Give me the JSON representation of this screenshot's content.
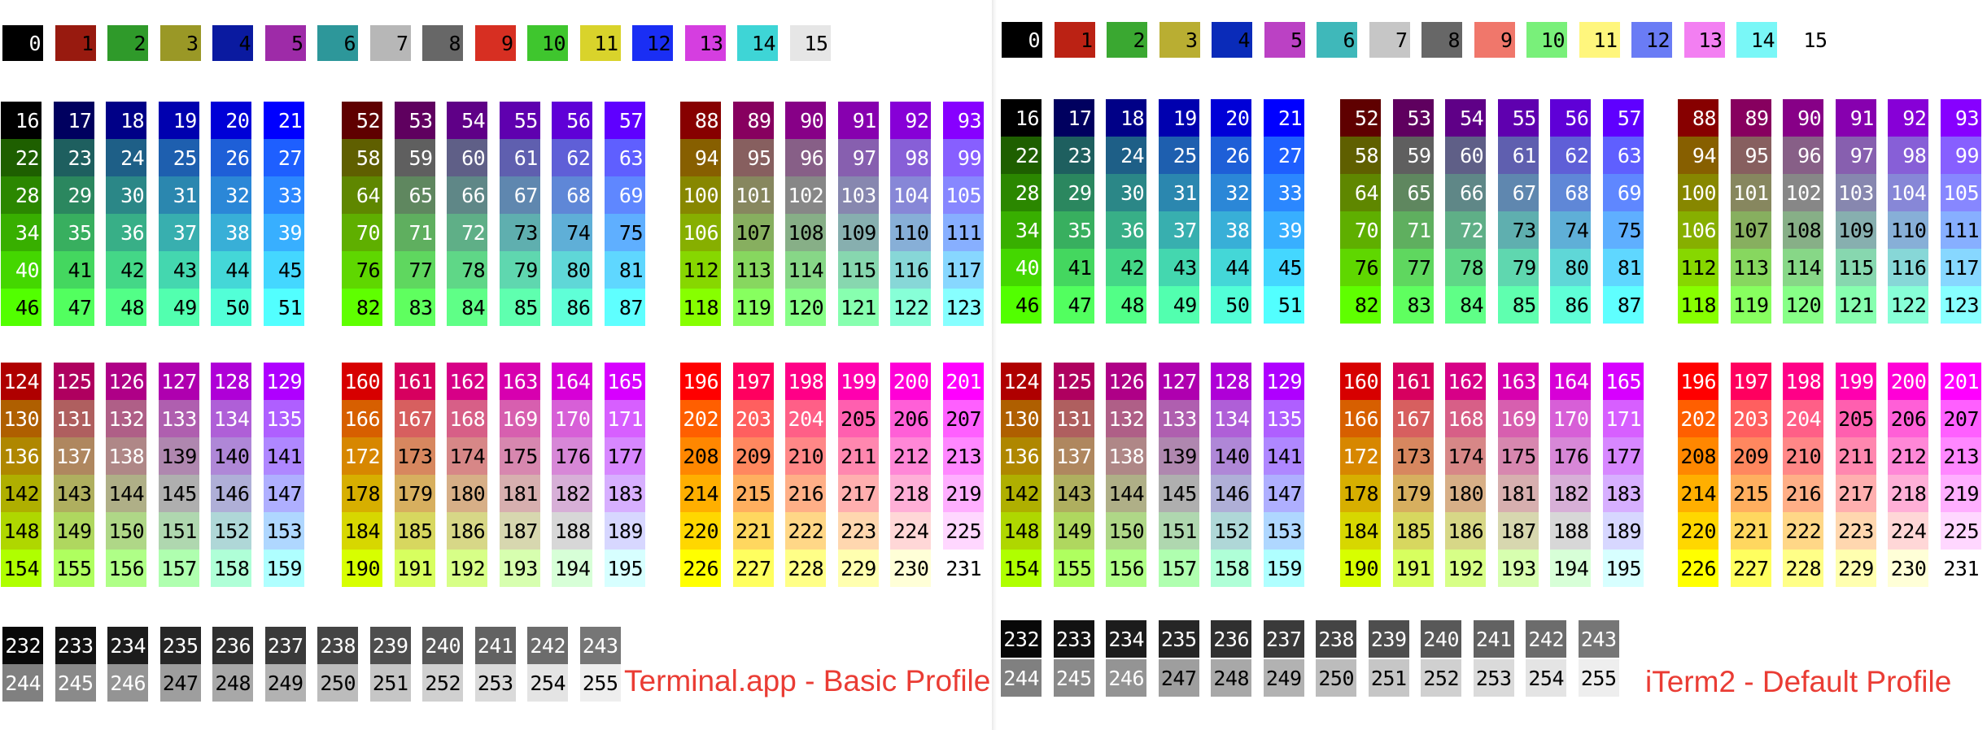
{
  "panels": [
    {
      "id": "terminal-app",
      "label": "Terminal.app - Basic Profile",
      "ansi": [
        "#000000",
        "#981a0f",
        "#2f9a2a",
        "#9a9826",
        "#0a1aa0",
        "#9e2ba8",
        "#2d979a",
        "#b7b7b7",
        "#676767",
        "#d72f22",
        "#3fc62e",
        "#d9d32b",
        "#1a2ef4",
        "#d53ee0",
        "#3ed5d6",
        "#e6e6e6"
      ],
      "ansi_text": [
        "#ffffff",
        "#000000",
        "#000000",
        "#000000",
        "#000000",
        "#000000",
        "#000000",
        "#000000",
        "#000000",
        "#000000",
        "#000000",
        "#000000",
        "#000000",
        "#000000",
        "#000000",
        "#000000"
      ],
      "cube": [
        "#000000",
        "#00005f",
        "#000087",
        "#0000af",
        "#0000d7",
        "#0000ff",
        "#1e5f00",
        "#1e5f5f",
        "#1e5f87",
        "#1e5faf",
        "#1e5fd7",
        "#1e5fff",
        "#2b8700",
        "#2b875f",
        "#2b8787",
        "#2b87af",
        "#2b87d7",
        "#2b87ff",
        "#38af00",
        "#38af5f",
        "#38af87",
        "#38afaf",
        "#38afd7",
        "#38afff",
        "#44d700",
        "#44d75f",
        "#44d787",
        "#44d7af",
        "#44d7d7",
        "#44d7ff",
        "#52ff00",
        "#52ff5f",
        "#52ff87",
        "#52ffaf",
        "#52ffd7",
        "#52ffff",
        "#5f0000",
        "#5f005f",
        "#5f0087",
        "#5f00af",
        "#5f00d7",
        "#5f00ff",
        "#5f5f00",
        "#5f5f5f",
        "#5f5f87",
        "#5f5faf",
        "#5f5fd7",
        "#5f5fff",
        "#5f8700",
        "#5f875f",
        "#5f8787",
        "#5f87af",
        "#5f87d7",
        "#5f87ff",
        "#5faf00",
        "#5faf5f",
        "#5faf87",
        "#5fafaf",
        "#5fafd7",
        "#5fafff",
        "#5fd700",
        "#5fd75f",
        "#5fd787",
        "#5fd7af",
        "#5fd7d7",
        "#5fd7ff",
        "#5fff00",
        "#5fff5f",
        "#5fff87",
        "#5fffaf",
        "#5fffd7",
        "#5fffff",
        "#870000",
        "#87005f",
        "#870087",
        "#8700af",
        "#8700d7",
        "#8700ff",
        "#875f00",
        "#875f5f",
        "#875f87",
        "#875faf",
        "#875fd7",
        "#875fff",
        "#878700",
        "#87875f",
        "#878787",
        "#8787af",
        "#8787d7",
        "#8787ff",
        "#87af00",
        "#87af5f",
        "#87af87",
        "#87afaf",
        "#87afd7",
        "#87afff",
        "#87d700",
        "#87d75f",
        "#87d787",
        "#87d7af",
        "#87d7d7",
        "#87d7ff",
        "#87ff00",
        "#87ff5f",
        "#87ff87",
        "#87ffaf",
        "#87ffd7",
        "#87ffff",
        "#af0000",
        "#af005f",
        "#af0087",
        "#af00af",
        "#af00d7",
        "#af00ff",
        "#af5f00",
        "#af5f5f",
        "#af5f87",
        "#af5faf",
        "#af5fd7",
        "#af5fff",
        "#af8700",
        "#af875f",
        "#af8787",
        "#af87af",
        "#af87d7",
        "#af87ff",
        "#afaf00",
        "#afaf5f",
        "#afaf87",
        "#afafaf",
        "#afafd7",
        "#afafff",
        "#afd700",
        "#afd75f",
        "#afd787",
        "#afd7af",
        "#afd7d7",
        "#afd7ff",
        "#afff00",
        "#afff5f",
        "#afff87",
        "#afffaf",
        "#afffd7",
        "#afffff",
        "#d70000",
        "#d7005f",
        "#d70087",
        "#d700af",
        "#d700d7",
        "#d700ff",
        "#d75f00",
        "#d75f5f",
        "#d75f87",
        "#d75faf",
        "#d75fd7",
        "#d75fff",
        "#d78700",
        "#d7875f",
        "#d78787",
        "#d787af",
        "#d787d7",
        "#d787ff",
        "#d7af00",
        "#d7af5f",
        "#d7af87",
        "#d7afaf",
        "#d7afd7",
        "#d7afff",
        "#d7d700",
        "#d7d75f",
        "#d7d787",
        "#d7d7af",
        "#d7d7d7",
        "#d7d7ff",
        "#d7ff00",
        "#d7ff5f",
        "#d7ff87",
        "#d7ffaf",
        "#d7ffd7",
        "#d7ffff",
        "#ff0000",
        "#ff005f",
        "#ff0087",
        "#ff00af",
        "#ff00d7",
        "#ff00ff",
        "#ff5f00",
        "#ff5f5f",
        "#ff5f87",
        "#ff5faf",
        "#ff5fd7",
        "#ff5fff",
        "#ff8700",
        "#ff875f",
        "#ff8787",
        "#ff87af",
        "#ff87d7",
        "#ff87ff",
        "#ffaf00",
        "#ffaf5f",
        "#ffaf87",
        "#ffafaf",
        "#ffafd7",
        "#ffafff",
        "#ffd700",
        "#ffd75f",
        "#ffd787",
        "#ffd7af",
        "#ffd7d7",
        "#ffd7ff",
        "#ffff00",
        "#ffff5f",
        "#ffff87",
        "#ffffaf",
        "#ffffd7",
        "#ffffff"
      ],
      "gray": [
        "#080808",
        "#121212",
        "#1c1c1c",
        "#262626",
        "#303030",
        "#3a3a3a",
        "#444444",
        "#4e4e4e",
        "#585858",
        "#626262",
        "#6c6c6c",
        "#767676",
        "#808080",
        "#8a8a8a",
        "#949494",
        "#9e9e9e",
        "#a8a8a8",
        "#b2b2b2",
        "#bcbcbc",
        "#c6c6c6",
        "#d0d0d0",
        "#dadada",
        "#e4e4e4",
        "#eeeeee"
      ]
    },
    {
      "id": "iterm2",
      "label": "iTerm2 - Default Profile",
      "ansi": [
        "#000000",
        "#bb2214",
        "#3aa831",
        "#b9ae32",
        "#0a2bb9",
        "#bb41c4",
        "#3fb8ba",
        "#c6c6c6",
        "#676767",
        "#f0776b",
        "#79f07a",
        "#fff67d",
        "#6a7cf5",
        "#f37ff2",
        "#79f7f7",
        "#ffffff"
      ],
      "ansi_text": [
        "#ffffff",
        "#000000",
        "#000000",
        "#000000",
        "#000000",
        "#000000",
        "#000000",
        "#000000",
        "#000000",
        "#000000",
        "#000000",
        "#000000",
        "#000000",
        "#000000",
        "#000000",
        "#000000"
      ],
      "cube": [
        "#000000",
        "#00005f",
        "#000087",
        "#0000af",
        "#0000d7",
        "#0000ff",
        "#1e5f00",
        "#1e5f5f",
        "#1e5f87",
        "#1e5faf",
        "#1e5fd7",
        "#1e5fff",
        "#2b8700",
        "#2b875f",
        "#2b8787",
        "#2b87af",
        "#2b87d7",
        "#2b87ff",
        "#38af00",
        "#38af5f",
        "#38af87",
        "#38afaf",
        "#38afd7",
        "#38afff",
        "#44d700",
        "#44d75f",
        "#44d787",
        "#44d7af",
        "#44d7d7",
        "#44d7ff",
        "#52ff00",
        "#52ff5f",
        "#52ff87",
        "#52ffaf",
        "#52ffd7",
        "#52ffff",
        "#5f0000",
        "#5f005f",
        "#5f0087",
        "#5f00af",
        "#5f00d7",
        "#5f00ff",
        "#5f5f00",
        "#5f5f5f",
        "#5f5f87",
        "#5f5faf",
        "#5f5fd7",
        "#5f5fff",
        "#5f8700",
        "#5f875f",
        "#5f8787",
        "#5f87af",
        "#5f87d7",
        "#5f87ff",
        "#5faf00",
        "#5faf5f",
        "#5faf87",
        "#5fafaf",
        "#5fafd7",
        "#5fafff",
        "#5fd700",
        "#5fd75f",
        "#5fd787",
        "#5fd7af",
        "#5fd7d7",
        "#5fd7ff",
        "#5fff00",
        "#5fff5f",
        "#5fff87",
        "#5fffaf",
        "#5fffd7",
        "#5fffff",
        "#870000",
        "#87005f",
        "#870087",
        "#8700af",
        "#8700d7",
        "#8700ff",
        "#875f00",
        "#875f5f",
        "#875f87",
        "#875faf",
        "#875fd7",
        "#875fff",
        "#878700",
        "#87875f",
        "#878787",
        "#8787af",
        "#8787d7",
        "#8787ff",
        "#87af00",
        "#87af5f",
        "#87af87",
        "#87afaf",
        "#87afd7",
        "#87afff",
        "#87d700",
        "#87d75f",
        "#87d787",
        "#87d7af",
        "#87d7d7",
        "#87d7ff",
        "#87ff00",
        "#87ff5f",
        "#87ff87",
        "#87ffaf",
        "#87ffd7",
        "#87ffff",
        "#af0000",
        "#af005f",
        "#af0087",
        "#af00af",
        "#af00d7",
        "#af00ff",
        "#af5f00",
        "#af5f5f",
        "#af5f87",
        "#af5faf",
        "#af5fd7",
        "#af5fff",
        "#af8700",
        "#af875f",
        "#af8787",
        "#af87af",
        "#af87d7",
        "#af87ff",
        "#afaf00",
        "#afaf5f",
        "#afaf87",
        "#afafaf",
        "#afafd7",
        "#afafff",
        "#afd700",
        "#afd75f",
        "#afd787",
        "#afd7af",
        "#afd7d7",
        "#afd7ff",
        "#afff00",
        "#afff5f",
        "#afff87",
        "#afffaf",
        "#afffd7",
        "#afffff",
        "#d70000",
        "#d7005f",
        "#d70087",
        "#d700af",
        "#d700d7",
        "#d700ff",
        "#d75f00",
        "#d75f5f",
        "#d75f87",
        "#d75faf",
        "#d75fd7",
        "#d75fff",
        "#d78700",
        "#d7875f",
        "#d78787",
        "#d787af",
        "#d787d7",
        "#d787ff",
        "#d7af00",
        "#d7af5f",
        "#d7af87",
        "#d7afaf",
        "#d7afd7",
        "#d7afff",
        "#d7d700",
        "#d7d75f",
        "#d7d787",
        "#d7d7af",
        "#d7d7d7",
        "#d7d7ff",
        "#d7ff00",
        "#d7ff5f",
        "#d7ff87",
        "#d7ffaf",
        "#d7ffd7",
        "#d7ffff",
        "#ff0000",
        "#ff005f",
        "#ff0087",
        "#ff00af",
        "#ff00d7",
        "#ff00ff",
        "#ff5f00",
        "#ff5f5f",
        "#ff5f87",
        "#ff5faf",
        "#ff5fd7",
        "#ff5fff",
        "#ff8700",
        "#ff875f",
        "#ff8787",
        "#ff87af",
        "#ff87d7",
        "#ff87ff",
        "#ffaf00",
        "#ffaf5f",
        "#ffaf87",
        "#ffafaf",
        "#ffafd7",
        "#ffafff",
        "#ffd700",
        "#ffd75f",
        "#ffd787",
        "#ffd7af",
        "#ffd7d7",
        "#ffd7ff",
        "#ffff00",
        "#ffff5f",
        "#ffff87",
        "#ffffaf",
        "#ffffd7",
        "#ffffff"
      ],
      "gray": [
        "#080808",
        "#121212",
        "#1c1c1c",
        "#262626",
        "#303030",
        "#3a3a3a",
        "#444444",
        "#4e4e4e",
        "#585858",
        "#626262",
        "#6c6c6c",
        "#767676",
        "#808080",
        "#8a8a8a",
        "#949494",
        "#9e9e9e",
        "#a8a8a8",
        "#b2b2b2",
        "#bcbcbc",
        "#c6c6c6",
        "#d0d0d0",
        "#dadada",
        "#e4e4e4",
        "#eeeeee"
      ]
    }
  ]
}
